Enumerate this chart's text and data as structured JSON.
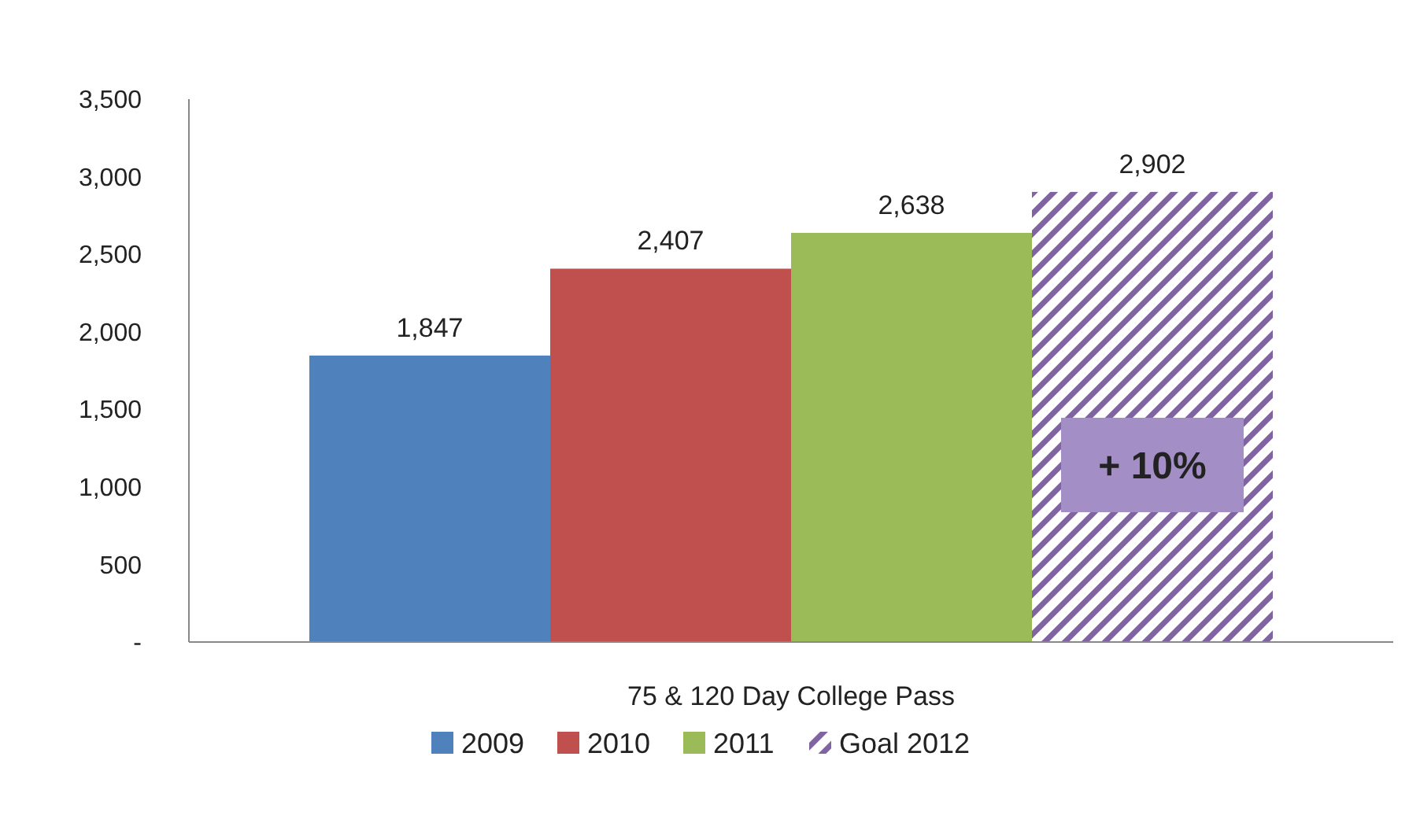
{
  "chart_data": {
    "type": "bar",
    "categories": [
      "75 & 120 Day College Pass"
    ],
    "series": [
      {
        "name": "2009",
        "color": "#4f81bd",
        "values": [
          1847
        ],
        "value_labels": [
          "1,847"
        ]
      },
      {
        "name": "2010",
        "color": "#c0504d",
        "values": [
          2407
        ],
        "value_labels": [
          "2,407"
        ]
      },
      {
        "name": "2011",
        "color": "#9bbb59",
        "values": [
          2638
        ],
        "value_labels": [
          "2,638"
        ]
      },
      {
        "name": "Goal 2012",
        "color": "#8064a2",
        "values": [
          2902
        ],
        "value_labels": [
          "2,902"
        ],
        "line_style": "dashed"
      }
    ],
    "ylim": [
      0,
      3500
    ],
    "yticks": [
      {
        "value": 0,
        "label": "-"
      },
      {
        "value": 500,
        "label": "500"
      },
      {
        "value": 1000,
        "label": "1,000"
      },
      {
        "value": 1500,
        "label": "1,500"
      },
      {
        "value": 2000,
        "label": "2,000"
      },
      {
        "value": 2500,
        "label": "2,500"
      },
      {
        "value": 3000,
        "label": "3,000"
      },
      {
        "value": 3500,
        "label": "3,500"
      }
    ],
    "legend": "bottom",
    "grid": false,
    "annotations": [
      "+ 10%"
    ]
  }
}
